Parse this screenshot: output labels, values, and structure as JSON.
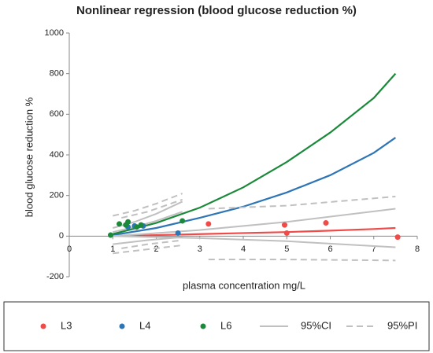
{
  "chart_data": {
    "type": "scatter",
    "title": "Nonlinear regression (blood glucose reduction %)",
    "x_label": "plasma concentration mg/L",
    "y_label": "blood glucose reduction %",
    "xlim": [
      0,
      8
    ],
    "xticks": [
      0,
      1,
      2,
      3,
      4,
      5,
      6,
      7,
      8
    ],
    "ylim": [
      -200,
      1000
    ],
    "yticks": [
      -200,
      0,
      200,
      400,
      600,
      800,
      1000
    ],
    "series": [
      {
        "name": "L3",
        "color": "#ef4b48",
        "x": [
          3.2,
          4.95,
          5.0,
          5.9,
          7.55
        ],
        "values": [
          60,
          55,
          15,
          65,
          -5
        ],
        "fit": {
          "x": [
            1,
            2,
            3,
            4,
            5,
            6,
            7,
            7.5
          ],
          "y": [
            0,
            5,
            10,
            15,
            20,
            27,
            35,
            40
          ]
        }
      },
      {
        "name": "L4",
        "color": "#2e75b6",
        "x": [
          1.35,
          1.5,
          1.7,
          2.5
        ],
        "values": [
          45,
          50,
          50,
          15
        ],
        "fit": {
          "x": [
            1,
            2,
            3,
            4,
            5,
            6,
            7,
            7.5
          ],
          "y": [
            5,
            40,
            90,
            145,
            215,
            300,
            410,
            485
          ]
        }
      },
      {
        "name": "L6",
        "color": "#1a8a3a",
        "x": [
          0.95,
          1.15,
          1.3,
          1.35,
          1.55,
          1.65,
          2.6
        ],
        "values": [
          5,
          60,
          55,
          70,
          45,
          55,
          75
        ],
        "fit": {
          "x": [
            1,
            2,
            3,
            4,
            5,
            6,
            7,
            7.5
          ],
          "y": [
            10,
            65,
            140,
            240,
            365,
            510,
            680,
            800
          ]
        }
      },
      {
        "name": "95%CI",
        "color": "#c0c0c0",
        "dashed": false,
        "lines": [
          {
            "x": [
              1,
              3,
              5,
              7.5
            ],
            "y": [
              0,
              30,
              70,
              135
            ]
          },
          {
            "x": [
              1,
              3,
              5,
              7.5
            ],
            "y": [
              0,
              -10,
              -25,
              -55
            ]
          },
          {
            "x": [
              1,
              1.5,
              2,
              2.6
            ],
            "y": [
              40,
              70,
              110,
              170
            ]
          },
          {
            "x": [
              1,
              1.5,
              2,
              2.6
            ],
            "y": [
              20,
              45,
              75,
              120
            ]
          },
          {
            "x": [
              1,
              1.8,
              2.6
            ],
            "y": [
              -40,
              -20,
              -5
            ]
          }
        ]
      },
      {
        "name": "95%PI",
        "color": "#c0c0c0",
        "dashed": true,
        "lines": [
          {
            "x": [
              3.2,
              5,
              7.5
            ],
            "y": [
              135,
              150,
              195
            ]
          },
          {
            "x": [
              3.2,
              5,
              7.5
            ],
            "y": [
              -115,
              -115,
              -120
            ]
          },
          {
            "x": [
              1,
              1.5,
              2,
              2.6
            ],
            "y": [
              100,
              125,
              160,
              210
            ]
          },
          {
            "x": [
              1.2,
              1.8,
              2.6
            ],
            "y": [
              90,
              120,
              180
            ]
          },
          {
            "x": [
              1,
              1.8,
              2.6
            ],
            "y": [
              -85,
              -65,
              -45
            ]
          },
          {
            "x": [
              1.2,
              1.8,
              2.6
            ],
            "y": [
              -60,
              -40,
              -20
            ]
          }
        ]
      }
    ]
  }
}
